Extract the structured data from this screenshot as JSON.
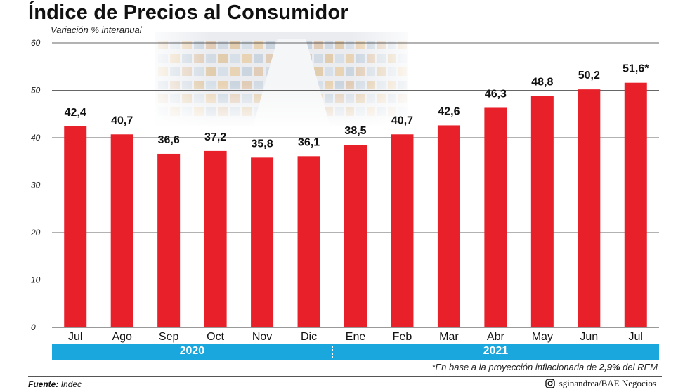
{
  "header": {
    "title": "Índice de Precios al Consumidor",
    "subtitle": "Variación % interanual"
  },
  "chart_data": {
    "type": "bar",
    "categories": [
      "Jul",
      "Ago",
      "Sep",
      "Oct",
      "Nov",
      "Dic",
      "Ene",
      "Feb",
      "Mar",
      "Abr",
      "May",
      "Jun",
      "Jul"
    ],
    "values": [
      42.4,
      40.7,
      36.6,
      37.2,
      35.8,
      36.1,
      38.5,
      40.7,
      42.6,
      46.3,
      48.8,
      50.2,
      51.6
    ],
    "value_labels": [
      "42,4",
      "40,7",
      "36,6",
      "37,2",
      "35,8",
      "36,1",
      "38,5",
      "40,7",
      "42,6",
      "46,3",
      "48,8",
      "50,2",
      "51,6*"
    ],
    "yticks": [
      "0",
      "10",
      "20",
      "30",
      "40",
      "50",
      "60"
    ],
    "ylim": [
      0,
      60
    ],
    "grid": true,
    "bar_color": "#e8202a",
    "years": [
      {
        "label": "2020",
        "months": 6
      },
      {
        "label": "2021",
        "months": 7
      }
    ],
    "year_bar_color": "#1aa7de"
  },
  "footnote": {
    "prefix": "*En base a la proyección inflacionaria de ",
    "highlight": "2,9%",
    "suffix": " del REM"
  },
  "source": {
    "label": "Fuente:",
    "value": "Indec"
  },
  "credit": {
    "icon": "instagram-icon",
    "text": "sginandrea/BAE Negocios"
  }
}
